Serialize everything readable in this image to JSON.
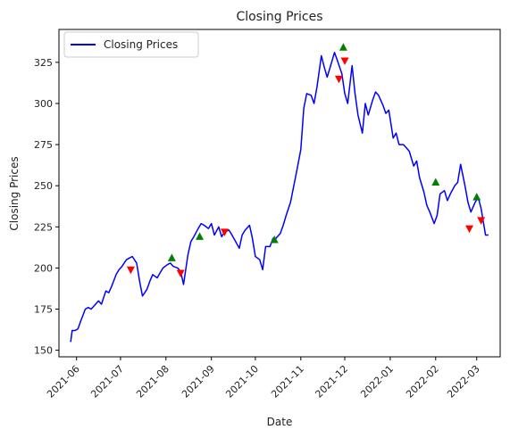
{
  "chart_data": {
    "type": "line",
    "title": "Closing Prices",
    "xlabel": "Date",
    "ylabel": "Closing Prices",
    "ylim": [
      146,
      345
    ],
    "xlim": [
      "2021-05-20",
      "2022-03-17"
    ],
    "grid": false,
    "legend_position": "top-left",
    "y_ticks": [
      150,
      175,
      200,
      225,
      250,
      275,
      300,
      325
    ],
    "x_ticks": [
      "2021-06",
      "2021-07",
      "2021-08",
      "2021-09",
      "2021-10",
      "2021-11",
      "2021-12",
      "2022-01",
      "2022-02",
      "2022-03"
    ],
    "series": [
      {
        "name": "Closing Prices",
        "color": "#0000ff",
        "x": [
          "2021-05-28",
          "2021-05-29",
          "2021-05-31",
          "2021-06-02",
          "2021-06-04",
          "2021-06-07",
          "2021-06-09",
          "2021-06-11",
          "2021-06-14",
          "2021-06-16",
          "2021-06-18",
          "2021-06-21",
          "2021-06-23",
          "2021-06-25",
          "2021-06-28",
          "2021-06-30",
          "2021-07-02",
          "2021-07-05",
          "2021-07-07",
          "2021-07-09",
          "2021-07-12",
          "2021-07-14",
          "2021-07-16",
          "2021-07-19",
          "2021-07-21",
          "2021-07-23",
          "2021-07-26",
          "2021-07-28",
          "2021-07-30",
          "2021-08-02",
          "2021-08-04",
          "2021-08-06",
          "2021-08-09",
          "2021-08-11",
          "2021-08-13",
          "2021-08-16",
          "2021-08-18",
          "2021-08-20",
          "2021-08-23",
          "2021-08-25",
          "2021-08-27",
          "2021-08-30",
          "2021-09-01",
          "2021-09-03",
          "2021-09-06",
          "2021-09-08",
          "2021-09-10",
          "2021-09-13",
          "2021-09-15",
          "2021-09-17",
          "2021-09-20",
          "2021-09-22",
          "2021-09-24",
          "2021-09-27",
          "2021-09-29",
          "2021-10-01",
          "2021-10-04",
          "2021-10-06",
          "2021-10-08",
          "2021-10-11",
          "2021-10-13",
          "2021-10-15",
          "2021-10-18",
          "2021-10-20",
          "2021-10-22",
          "2021-10-25",
          "2021-10-27",
          "2021-10-29",
          "2021-11-01",
          "2021-11-03",
          "2021-11-05",
          "2021-11-08",
          "2021-11-10",
          "2021-11-12",
          "2021-11-15",
          "2021-11-17",
          "2021-11-19",
          "2021-11-22",
          "2021-11-24",
          "2021-11-26",
          "2021-11-29",
          "2021-12-01",
          "2021-12-03",
          "2021-12-06",
          "2021-12-08",
          "2021-12-10",
          "2021-12-13",
          "2021-12-15",
          "2021-12-17",
          "2021-12-20",
          "2021-12-22",
          "2021-12-24",
          "2021-12-27",
          "2021-12-29",
          "2021-12-31",
          "2022-01-03",
          "2022-01-05",
          "2022-01-07",
          "2022-01-10",
          "2022-01-12",
          "2022-01-14",
          "2022-01-17",
          "2022-01-19",
          "2022-01-21",
          "2022-01-24",
          "2022-01-26",
          "2022-01-28",
          "2022-01-31",
          "2022-02-02",
          "2022-02-04",
          "2022-02-07",
          "2022-02-09",
          "2022-02-11",
          "2022-02-14",
          "2022-02-16",
          "2022-02-18",
          "2022-02-21",
          "2022-02-23",
          "2022-02-25",
          "2022-02-28",
          "2022-03-02",
          "2022-03-04",
          "2022-03-07",
          "2022-03-09"
        ],
        "y": [
          155,
          162,
          162,
          163,
          168,
          175,
          176,
          175,
          178,
          180,
          178,
          186,
          185,
          189,
          196,
          199,
          201,
          205,
          206,
          207,
          203,
          192,
          183,
          187,
          192,
          196,
          194,
          197,
          200,
          202,
          203,
          201,
          200,
          198,
          190,
          208,
          216,
          219,
          224,
          227,
          226,
          224,
          227,
          220,
          225,
          219,
          222,
          223,
          220,
          217,
          212,
          220,
          223,
          226,
          218,
          207,
          205,
          199,
          213,
          213,
          218,
          218,
          221,
          226,
          232,
          240,
          249,
          258,
          272,
          297,
          306,
          305,
          300,
          310,
          329,
          322,
          316,
          325,
          331,
          326,
          318,
          306,
          300,
          323,
          306,
          293,
          282,
          300,
          293,
          302,
          307,
          305,
          299,
          294,
          296,
          279,
          282,
          275,
          275,
          273,
          271,
          262,
          265,
          255,
          246,
          238,
          234,
          227,
          232,
          245,
          247,
          241,
          245,
          250,
          252,
          263,
          250,
          240,
          234,
          240,
          243,
          236,
          220,
          220
        ]
      }
    ],
    "buy_signals": {
      "color": "#008000",
      "points": [
        {
          "x": "2021-08-05",
          "y": 206
        },
        {
          "x": "2021-08-24",
          "y": 219
        },
        {
          "x": "2021-10-14",
          "y": 217
        },
        {
          "x": "2021-11-30",
          "y": 334
        },
        {
          "x": "2022-02-01",
          "y": 252
        },
        {
          "x": "2022-03-01",
          "y": 243
        }
      ]
    },
    "sell_signals": {
      "color": "#ff0000",
      "points": [
        {
          "x": "2021-07-08",
          "y": 199
        },
        {
          "x": "2021-08-11",
          "y": 197
        },
        {
          "x": "2021-09-10",
          "y": 222
        },
        {
          "x": "2021-11-27",
          "y": 315
        },
        {
          "x": "2021-12-01",
          "y": 326
        },
        {
          "x": "2022-02-24",
          "y": 224
        },
        {
          "x": "2022-03-04",
          "y": 229
        }
      ]
    }
  }
}
